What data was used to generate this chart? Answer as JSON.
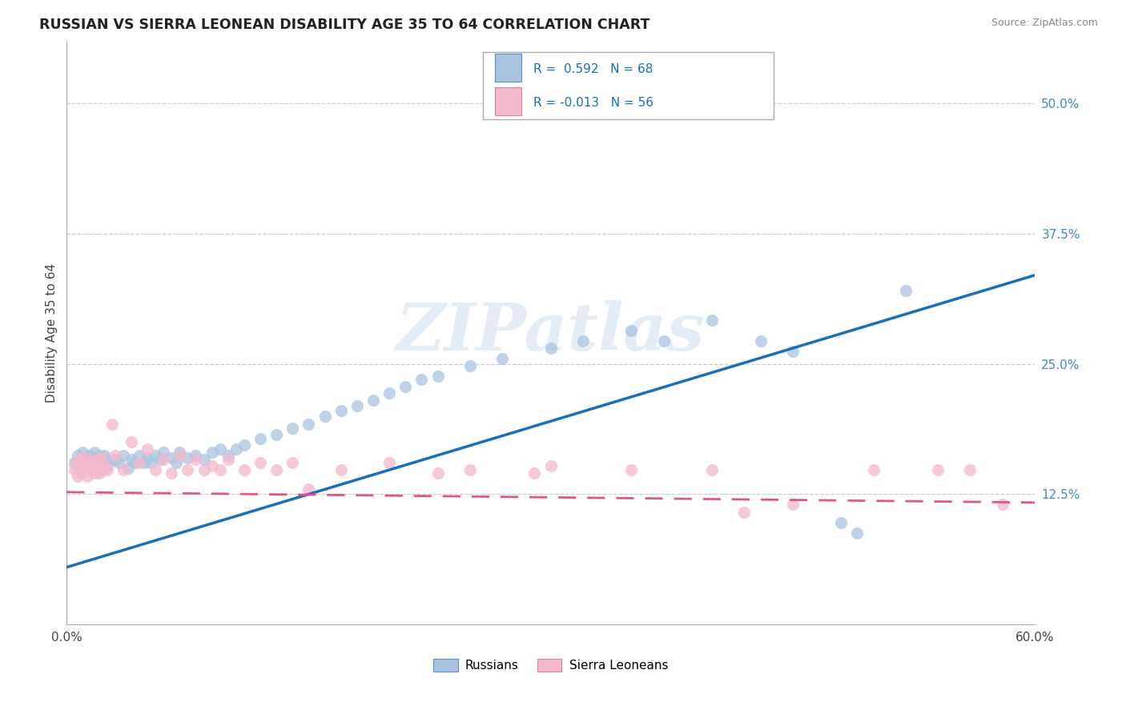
{
  "title": "RUSSIAN VS SIERRA LEONEAN DISABILITY AGE 35 TO 64 CORRELATION CHART",
  "source_text": "Source: ZipAtlas.com",
  "ylabel": "Disability Age 35 to 64",
  "xlim": [
    0.0,
    0.6
  ],
  "ylim": [
    0.0,
    0.56
  ],
  "xtick_vals": [
    0.0,
    0.1,
    0.2,
    0.3,
    0.4,
    0.5,
    0.6
  ],
  "xtick_labels": [
    "0.0%",
    "",
    "",
    "",
    "",
    "",
    "60.0%"
  ],
  "ytick_vals": [
    0.125,
    0.25,
    0.375,
    0.5
  ],
  "ytick_labels": [
    "12.5%",
    "25.0%",
    "37.5%",
    "50.0%"
  ],
  "watermark": "ZIPatlas",
  "blue_R": "0.592",
  "blue_N": "68",
  "pink_R": "-0.013",
  "pink_N": "56",
  "blue_color": "#aac4e0",
  "blue_edge": "#5590c8",
  "blue_line_color": "#1a6fba",
  "pink_color": "#f4b8cc",
  "pink_edge": "#e080a0",
  "pink_line_color": "#e05880",
  "blue_trend_x": [
    0.0,
    0.6
  ],
  "blue_trend_y": [
    0.055,
    0.335
  ],
  "pink_trend_x": [
    0.0,
    0.6
  ],
  "pink_trend_y": [
    0.127,
    0.117
  ],
  "background_color": "#ffffff",
  "grid_color": "#cccccc",
  "title_color": "#222222",
  "source_color": "#888888",
  "right_tick_color": "#4488cc",
  "marker_size": 120,
  "russian_points": [
    [
      0.005,
      0.155
    ],
    [
      0.007,
      0.162
    ],
    [
      0.008,
      0.15
    ],
    [
      0.01,
      0.158
    ],
    [
      0.01,
      0.165
    ],
    [
      0.011,
      0.152
    ],
    [
      0.012,
      0.16
    ],
    [
      0.013,
      0.155
    ],
    [
      0.014,
      0.162
    ],
    [
      0.015,
      0.158
    ],
    [
      0.016,
      0.15
    ],
    [
      0.017,
      0.165
    ],
    [
      0.018,
      0.155
    ],
    [
      0.019,
      0.16
    ],
    [
      0.02,
      0.162
    ],
    [
      0.021,
      0.148
    ],
    [
      0.022,
      0.155
    ],
    [
      0.023,
      0.162
    ],
    [
      0.024,
      0.158
    ],
    [
      0.025,
      0.152
    ],
    [
      0.03,
      0.158
    ],
    [
      0.032,
      0.155
    ],
    [
      0.035,
      0.162
    ],
    [
      0.038,
      0.15
    ],
    [
      0.04,
      0.158
    ],
    [
      0.042,
      0.155
    ],
    [
      0.045,
      0.162
    ],
    [
      0.048,
      0.155
    ],
    [
      0.05,
      0.16
    ],
    [
      0.052,
      0.155
    ],
    [
      0.055,
      0.162
    ],
    [
      0.058,
      0.158
    ],
    [
      0.06,
      0.165
    ],
    [
      0.065,
      0.16
    ],
    [
      0.068,
      0.155
    ],
    [
      0.07,
      0.165
    ],
    [
      0.075,
      0.16
    ],
    [
      0.08,
      0.162
    ],
    [
      0.085,
      0.158
    ],
    [
      0.09,
      0.165
    ],
    [
      0.095,
      0.168
    ],
    [
      0.1,
      0.162
    ],
    [
      0.105,
      0.168
    ],
    [
      0.11,
      0.172
    ],
    [
      0.12,
      0.178
    ],
    [
      0.13,
      0.182
    ],
    [
      0.14,
      0.188
    ],
    [
      0.15,
      0.192
    ],
    [
      0.16,
      0.2
    ],
    [
      0.17,
      0.205
    ],
    [
      0.18,
      0.21
    ],
    [
      0.19,
      0.215
    ],
    [
      0.2,
      0.222
    ],
    [
      0.21,
      0.228
    ],
    [
      0.22,
      0.235
    ],
    [
      0.23,
      0.238
    ],
    [
      0.25,
      0.248
    ],
    [
      0.27,
      0.255
    ],
    [
      0.3,
      0.265
    ],
    [
      0.32,
      0.272
    ],
    [
      0.35,
      0.282
    ],
    [
      0.37,
      0.272
    ],
    [
      0.4,
      0.292
    ],
    [
      0.43,
      0.272
    ],
    [
      0.45,
      0.262
    ],
    [
      0.48,
      0.098
    ],
    [
      0.49,
      0.088
    ],
    [
      0.52,
      0.32
    ]
  ],
  "sierra_points": [
    [
      0.005,
      0.148
    ],
    [
      0.006,
      0.155
    ],
    [
      0.007,
      0.142
    ],
    [
      0.008,
      0.158
    ],
    [
      0.009,
      0.145
    ],
    [
      0.01,
      0.152
    ],
    [
      0.01,
      0.16
    ],
    [
      0.011,
      0.148
    ],
    [
      0.012,
      0.155
    ],
    [
      0.013,
      0.142
    ],
    [
      0.014,
      0.158
    ],
    [
      0.015,
      0.148
    ],
    [
      0.016,
      0.155
    ],
    [
      0.017,
      0.145
    ],
    [
      0.018,
      0.152
    ],
    [
      0.019,
      0.158
    ],
    [
      0.02,
      0.145
    ],
    [
      0.021,
      0.16
    ],
    [
      0.022,
      0.148
    ],
    [
      0.023,
      0.152
    ],
    [
      0.025,
      0.148
    ],
    [
      0.028,
      0.192
    ],
    [
      0.03,
      0.162
    ],
    [
      0.035,
      0.148
    ],
    [
      0.04,
      0.175
    ],
    [
      0.045,
      0.155
    ],
    [
      0.05,
      0.168
    ],
    [
      0.055,
      0.148
    ],
    [
      0.06,
      0.158
    ],
    [
      0.065,
      0.145
    ],
    [
      0.07,
      0.162
    ],
    [
      0.075,
      0.148
    ],
    [
      0.08,
      0.158
    ],
    [
      0.085,
      0.148
    ],
    [
      0.09,
      0.152
    ],
    [
      0.095,
      0.148
    ],
    [
      0.1,
      0.158
    ],
    [
      0.11,
      0.148
    ],
    [
      0.12,
      0.155
    ],
    [
      0.13,
      0.148
    ],
    [
      0.14,
      0.155
    ],
    [
      0.15,
      0.13
    ],
    [
      0.17,
      0.148
    ],
    [
      0.2,
      0.155
    ],
    [
      0.23,
      0.145
    ],
    [
      0.25,
      0.148
    ],
    [
      0.29,
      0.145
    ],
    [
      0.3,
      0.152
    ],
    [
      0.35,
      0.148
    ],
    [
      0.4,
      0.148
    ],
    [
      0.42,
      0.108
    ],
    [
      0.45,
      0.115
    ],
    [
      0.5,
      0.148
    ],
    [
      0.54,
      0.148
    ],
    [
      0.56,
      0.148
    ],
    [
      0.58,
      0.115
    ]
  ]
}
